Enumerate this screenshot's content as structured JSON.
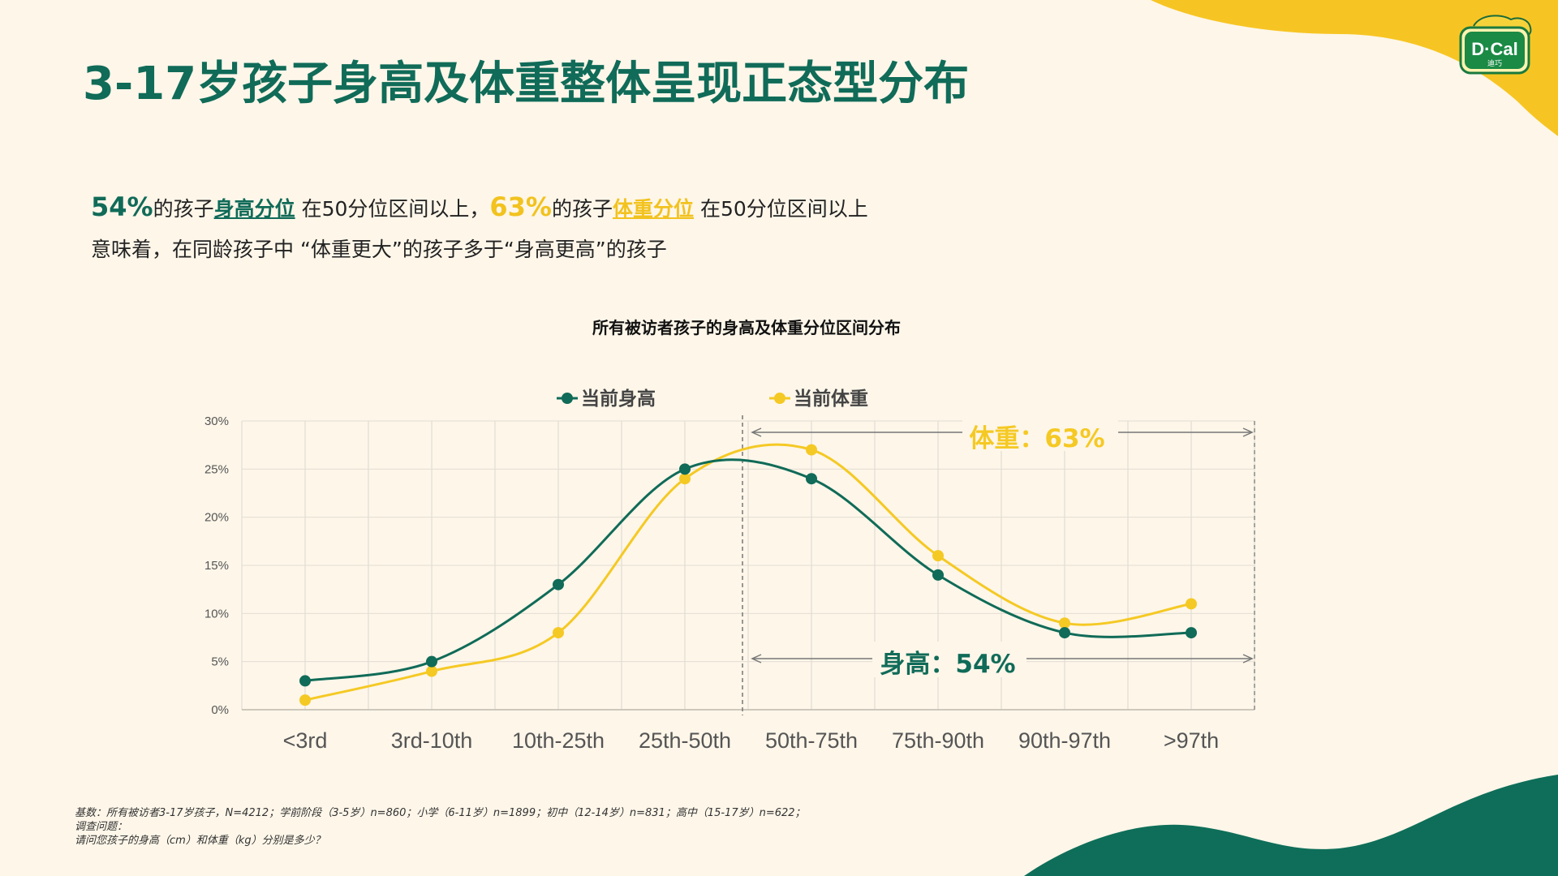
{
  "title": "3-17岁孩子身高及体重整体呈现正态型分布",
  "summary": {
    "line1": {
      "pct_height": "54%",
      "text_a": "的孩子",
      "link_height": "身高分位",
      "text_b": "在50分位区间以上，",
      "pct_weight": "63%",
      "text_c": "的孩子",
      "link_weight": "体重分位",
      "text_d": "在50分位区间以上"
    },
    "line2": "意味着，在同龄孩子中 “体重更大”的孩子多于“身高更高”的孩子"
  },
  "logo": {
    "text": "D·Cal",
    "subtext": "迪巧"
  },
  "chart_data": {
    "type": "line",
    "title": "所有被访者孩子的身高及体重分位区间分布",
    "categories": [
      "<3rd",
      "3rd-10th",
      "10th-25th",
      "25th-50th",
      "50th-75th",
      "75th-90th",
      "90th-97th",
      ">97th"
    ],
    "series": [
      {
        "name": "当前身高",
        "color": "#106b58",
        "values": [
          3,
          5,
          13,
          25,
          24,
          14,
          8,
          8
        ]
      },
      {
        "name": "当前体重",
        "color": "#f5c924",
        "values": [
          1,
          4,
          8,
          24,
          27,
          16,
          9,
          11
        ]
      }
    ],
    "y_ticks": [
      "0%",
      "5%",
      "10%",
      "15%",
      "20%",
      "25%",
      "30%"
    ],
    "ylim": [
      0,
      30
    ],
    "grid": true,
    "legend_position": "top",
    "annotations": {
      "weight": "体重：63%",
      "height": "身高：54%"
    }
  },
  "footnote": {
    "line1": "基数：所有被访者3-17岁孩子，N=4212；学前阶段（3-5岁）n=860；小学（6-11岁）n=1899；初中（12-14岁）n=831；高中（15-17岁）n=622；",
    "line2": "调查问题：",
    "line3": "请问您孩子的身高（cm）和体重（kg）分别是多少？"
  },
  "colors": {
    "background": "#fdf6e9",
    "brand_green": "#106b58",
    "brand_yellow": "#f5c924"
  }
}
